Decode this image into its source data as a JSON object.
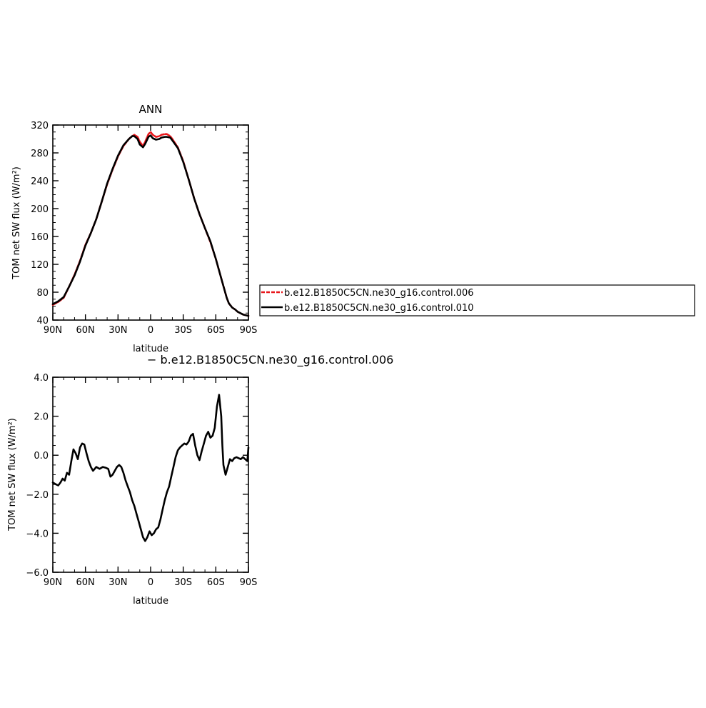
{
  "chart_data": [
    {
      "type": "line",
      "title": "ANN",
      "xlabel": "latitude",
      "ylabel": "TOM net SW flux (W/m²)",
      "xlim": [
        90,
        -90
      ],
      "ylim": [
        40,
        320
      ],
      "x_ticks": [
        90,
        60,
        30,
        0,
        -30,
        -60,
        -90
      ],
      "x_tick_labels": [
        "90N",
        "60N",
        "30N",
        "0",
        "30S",
        "60S",
        "90S"
      ],
      "y_ticks": [
        40,
        80,
        120,
        160,
        200,
        240,
        280,
        320
      ],
      "y_tick_labels": [
        "40",
        "80",
        "120",
        "160",
        "200",
        "240",
        "280",
        "320"
      ],
      "legend": {
        "placement": "right",
        "entries": [
          "b.e12.B1850C5CN.ne30_g16.control.006",
          "b.e12.B1850C5CN.ne30_g16.control.010"
        ]
      },
      "series": [
        {
          "name": "b.e12.B1850C5CN.ne30_g16.control.006",
          "color": "#e8161b",
          "dash": true,
          "x": [
            90,
            85,
            80,
            75,
            70,
            65,
            60,
            55,
            50,
            45,
            40,
            35,
            30,
            25,
            20,
            17,
            15,
            12,
            10,
            7,
            5,
            2,
            0,
            -2,
            -5,
            -8,
            -10,
            -13,
            -15,
            -18,
            -20,
            -25,
            -30,
            -35,
            -40,
            -45,
            -50,
            -55,
            -60,
            -65,
            -70,
            -72,
            -75,
            -78,
            -80,
            -85,
            -90
          ],
          "y": [
            62,
            66,
            72,
            88,
            105,
            125,
            148,
            165,
            185,
            210,
            235,
            256,
            275,
            290,
            300,
            304,
            306,
            303,
            296,
            290,
            296,
            307,
            310,
            306,
            303,
            304,
            306,
            307,
            307,
            304,
            300,
            288,
            268,
            242,
            215,
            192,
            172,
            152,
            128,
            100,
            72,
            64,
            58,
            55,
            52,
            48,
            46
          ]
        },
        {
          "name": "b.e12.B1850C5CN.ne30_g16.control.010",
          "color": "#000000",
          "dash": false,
          "x": [
            90,
            85,
            80,
            75,
            70,
            65,
            60,
            55,
            50,
            45,
            40,
            35,
            30,
            25,
            20,
            17,
            15,
            12,
            10,
            7,
            5,
            2,
            0,
            -2,
            -5,
            -8,
            -10,
            -13,
            -15,
            -18,
            -20,
            -25,
            -30,
            -35,
            -40,
            -45,
            -50,
            -55,
            -60,
            -65,
            -70,
            -72,
            -75,
            -78,
            -80,
            -85,
            -90
          ],
          "y": [
            63,
            67,
            73,
            88,
            104,
            124,
            147,
            165,
            185,
            210,
            236,
            257,
            276,
            291,
            300,
            304,
            304,
            300,
            292,
            288,
            293,
            303,
            305,
            301,
            299,
            300,
            302,
            303,
            303,
            302,
            298,
            287,
            267,
            242,
            215,
            192,
            172,
            153,
            128,
            100,
            72,
            64,
            58,
            55,
            52,
            48,
            46
          ]
        }
      ]
    },
    {
      "type": "line",
      "title": "",
      "subtitle": "− b.e12.B1850C5CN.ne30_g16.control.006",
      "xlabel": "latitude",
      "ylabel": "TOM net SW flux (W/m²)",
      "xlim": [
        90,
        -90
      ],
      "ylim": [
        -6,
        4
      ],
      "x_ticks": [
        90,
        60,
        30,
        0,
        -30,
        -60,
        -90
      ],
      "x_tick_labels": [
        "90N",
        "60N",
        "30N",
        "0",
        "30S",
        "60S",
        "90S"
      ],
      "y_ticks": [
        -6,
        -4,
        -2,
        0,
        2,
        4
      ],
      "y_tick_labels": [
        "−6.0",
        "−4.0",
        "−2.0",
        "0.0",
        "2.0",
        "4.0"
      ],
      "series": [
        {
          "color": "#000000",
          "dash": false,
          "x": [
            90,
            87,
            85,
            83,
            81,
            79,
            77,
            75,
            73,
            71,
            69,
            67,
            65,
            63,
            61,
            59,
            57,
            55,
            53,
            50,
            47,
            44,
            41,
            39,
            37,
            35,
            33,
            31,
            29,
            27,
            25,
            23,
            21,
            19,
            17,
            15,
            13,
            11,
            9,
            7,
            5,
            3,
            1,
            -1,
            -3,
            -5,
            -7,
            -9,
            -11,
            -13,
            -15,
            -17,
            -19,
            -21,
            -23,
            -25,
            -27,
            -29,
            -31,
            -33,
            -35,
            -37,
            -39,
            -41,
            -43,
            -45,
            -47,
            -49,
            -51,
            -53,
            -55,
            -57,
            -59,
            -61,
            -63,
            -65,
            -66,
            -67,
            -69,
            -71,
            -73,
            -75,
            -77,
            -79,
            -81,
            -83,
            -85,
            -87,
            -89,
            -90
          ],
          "y": [
            -1.4,
            -1.5,
            -1.55,
            -1.4,
            -1.2,
            -1.3,
            -0.9,
            -1.0,
            -0.3,
            0.3,
            0.1,
            -0.2,
            0.4,
            0.6,
            0.55,
            0.1,
            -0.3,
            -0.6,
            -0.8,
            -0.6,
            -0.7,
            -0.6,
            -0.65,
            -0.7,
            -1.1,
            -1.0,
            -0.8,
            -0.6,
            -0.5,
            -0.6,
            -0.9,
            -1.3,
            -1.6,
            -1.9,
            -2.3,
            -2.6,
            -3.0,
            -3.4,
            -3.8,
            -4.2,
            -4.4,
            -4.2,
            -3.9,
            -4.1,
            -4.0,
            -3.8,
            -3.7,
            -3.3,
            -2.8,
            -2.3,
            -1.9,
            -1.6,
            -1.1,
            -0.6,
            -0.1,
            0.25,
            0.4,
            0.5,
            0.6,
            0.55,
            0.7,
            1.0,
            1.1,
            0.5,
            0.0,
            -0.25,
            0.2,
            0.6,
            1.0,
            1.2,
            0.9,
            1.0,
            1.4,
            2.5,
            3.1,
            2.0,
            0.5,
            -0.5,
            -1.0,
            -0.6,
            -0.2,
            -0.3,
            -0.15,
            -0.1,
            -0.15,
            -0.2,
            -0.1,
            -0.2,
            -0.3,
            0.4
          ]
        }
      ]
    }
  ]
}
